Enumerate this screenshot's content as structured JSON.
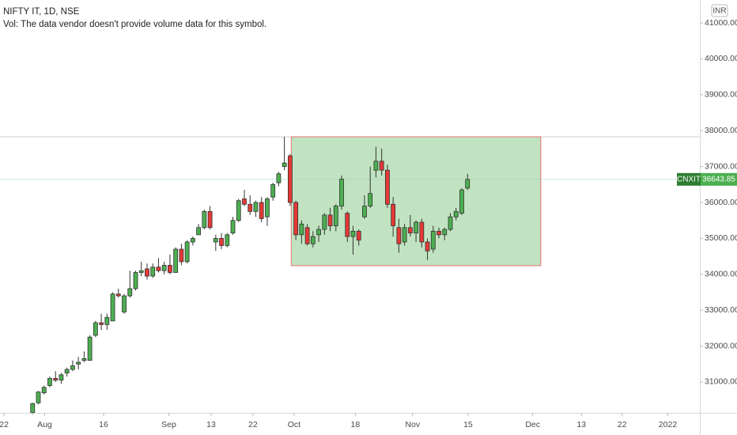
{
  "chart_data": {
    "type": "candlestick",
    "title": "NIFTY IT, 1D, NSE",
    "subtitle": "Vol: The data vendor doesn't provide volume data for this symbol.",
    "currency": "INR",
    "symbol_label": "CNXIT",
    "up_color": "#4caf50",
    "down_color": "#e53935",
    "xlim": [
      -4.7,
      117.6
    ],
    "ylim": [
      30140,
      41640
    ],
    "xticks": [
      {
        "value": -4.0,
        "label": "22"
      },
      {
        "value": 3.1,
        "label": "Aug"
      },
      {
        "value": 13.4,
        "label": "16"
      },
      {
        "value": 24.8,
        "label": "Sep"
      },
      {
        "value": 32.2,
        "label": "13"
      },
      {
        "value": 39.5,
        "label": "22"
      },
      {
        "value": 46.7,
        "label": "Oct"
      },
      {
        "value": 57.4,
        "label": "18"
      },
      {
        "value": 67.4,
        "label": "Nov"
      },
      {
        "value": 77.1,
        "label": "15"
      },
      {
        "value": 88.4,
        "label": "Dec"
      },
      {
        "value": 96.9,
        "label": "13"
      },
      {
        "value": 104.0,
        "label": "22"
      },
      {
        "value": 112.0,
        "label": "2022"
      }
    ],
    "yticks": [
      {
        "value": 31000,
        "label": "31000.00"
      },
      {
        "value": 32000,
        "label": "32000.00"
      },
      {
        "value": 33000,
        "label": "33000.00"
      },
      {
        "value": 34000,
        "label": "34000.00"
      },
      {
        "value": 35000,
        "label": "35000.00"
      },
      {
        "value": 36000,
        "label": "36000.00"
      },
      {
        "value": 37000,
        "label": "37000.00"
      },
      {
        "value": 38000,
        "label": "38000.00"
      },
      {
        "value": 39000,
        "label": "39000.00"
      },
      {
        "value": 40000,
        "label": "40000.00"
      },
      {
        "value": 41000,
        "label": "41000.00"
      }
    ],
    "rectangle": {
      "x": [
        46.2,
        89.8
      ],
      "y": [
        34240,
        37830
      ],
      "color": "#c1e3c1"
    },
    "x": [
      1,
      2,
      3,
      4,
      5,
      6,
      7,
      8,
      9,
      10,
      11,
      12,
      13,
      14,
      15,
      16,
      17,
      18,
      19,
      20,
      21,
      22,
      23,
      24,
      25,
      26,
      27,
      28,
      29,
      30,
      31,
      32,
      33,
      34,
      35,
      36,
      37,
      38,
      39,
      40,
      41,
      42,
      43,
      44,
      45,
      46,
      47,
      48,
      49,
      50,
      51,
      52,
      53,
      54,
      55,
      56,
      57,
      58,
      59,
      60,
      61,
      62,
      63,
      64,
      65,
      66,
      67,
      68,
      69,
      70,
      71,
      72,
      73,
      74,
      75,
      76,
      77
    ],
    "open": [
      30150,
      30420,
      30700,
      30900,
      31100,
      31050,
      31250,
      31350,
      31500,
      31600,
      31600,
      32300,
      32650,
      32600,
      32700,
      33450,
      32950,
      33400,
      33600,
      34050,
      34150,
      33950,
      34200,
      34100,
      34250,
      34050,
      34700,
      34350,
      34900,
      35100,
      35300,
      35750,
      34900,
      35000,
      34800,
      35150,
      35500,
      36100,
      35950,
      35750,
      36000,
      35600,
      36150,
      36550,
      37000,
      37300,
      36000,
      35100,
      35300,
      34850,
      35100,
      35250,
      35650,
      35350,
      35900,
      35700,
      35050,
      35200,
      35600,
      35900,
      36900,
      37150,
      36900,
      35950,
      35300,
      34900,
      35300,
      35150,
      35450,
      34900,
      34700,
      35200,
      35100,
      35250,
      35600,
      35700,
      36400
    ],
    "high": [
      30420,
      30750,
      30900,
      31150,
      31300,
      31250,
      31400,
      31600,
      31700,
      31850,
      32300,
      32700,
      32900,
      32900,
      33500,
      33600,
      33450,
      34100,
      34100,
      34350,
      34300,
      34300,
      34450,
      34350,
      34550,
      34750,
      34850,
      34950,
      35050,
      35400,
      35800,
      35900,
      35100,
      35150,
      35150,
      35600,
      36100,
      36350,
      36200,
      36050,
      36150,
      36150,
      36550,
      36850,
      37830,
      37350,
      36050,
      35500,
      35400,
      35200,
      35350,
      35700,
      35850,
      35950,
      36750,
      35750,
      35350,
      35250,
      36200,
      37000,
      37550,
      37500,
      37050,
      36150,
      35550,
      35400,
      35650,
      35500,
      35550,
      35000,
      35350,
      35300,
      35300,
      35700,
      35850,
      36400,
      36800
    ],
    "low": [
      30100,
      30380,
      30650,
      30850,
      31000,
      30950,
      31150,
      31300,
      31350,
      31550,
      31600,
      32250,
      32450,
      32450,
      32700,
      33350,
      32900,
      33350,
      33550,
      33950,
      33850,
      33900,
      34050,
      34000,
      34000,
      34050,
      34250,
      34300,
      34800,
      35100,
      35250,
      35250,
      34650,
      34700,
      34750,
      35100,
      35450,
      35900,
      35650,
      35600,
      35450,
      35350,
      36050,
      36450,
      36900,
      35900,
      34950,
      34850,
      34800,
      34750,
      34900,
      35100,
      35200,
      35200,
      35800,
      34900,
      34550,
      34800,
      35550,
      35850,
      36700,
      36750,
      35850,
      35050,
      34600,
      34800,
      35050,
      34900,
      34750,
      34400,
      34600,
      35000,
      34950,
      35200,
      35500,
      35650,
      36350
    ],
    "close": [
      30400,
      30720,
      30850,
      31100,
      31050,
      31200,
      31350,
      31450,
      31550,
      31650,
      32250,
      32650,
      32600,
      32800,
      33450,
      33400,
      33400,
      33600,
      34050,
      34100,
      33950,
      34200,
      34100,
      34250,
      34050,
      34700,
      34350,
      34900,
      35000,
      35300,
      35750,
      35300,
      35000,
      34800,
      35100,
      35500,
      36050,
      35950,
      35750,
      36000,
      35550,
      36100,
      36500,
      36800,
      37100,
      36000,
      35100,
      35400,
      34850,
      35050,
      35250,
      35650,
      35350,
      35900,
      36650,
      35050,
      35200,
      34950,
      35900,
      36250,
      37150,
      36900,
      35950,
      35350,
      34850,
      35300,
      35150,
      35450,
      34900,
      34650,
      35200,
      35100,
      35250,
      35600,
      35750,
      36350,
      36643.85
    ]
  }
}
